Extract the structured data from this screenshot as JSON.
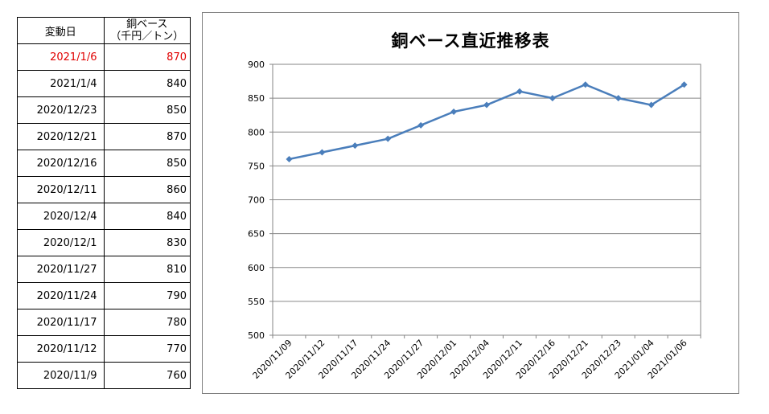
{
  "table": {
    "header_date": "変動日",
    "header_price_line1": "銅ベース",
    "header_price_line2": "（千円／トン）",
    "rows": [
      {
        "date": "2021/1/6",
        "value": "870",
        "highlight": true
      },
      {
        "date": "2021/1/4",
        "value": "840",
        "highlight": false
      },
      {
        "date": "2020/12/23",
        "value": "850",
        "highlight": false
      },
      {
        "date": "2020/12/21",
        "value": "870",
        "highlight": false
      },
      {
        "date": "2020/12/16",
        "value": "850",
        "highlight": false
      },
      {
        "date": "2020/12/11",
        "value": "860",
        "highlight": false
      },
      {
        "date": "2020/12/4",
        "value": "840",
        "highlight": false
      },
      {
        "date": "2020/12/1",
        "value": "830",
        "highlight": false
      },
      {
        "date": "2020/11/27",
        "value": "810",
        "highlight": false
      },
      {
        "date": "2020/11/24",
        "value": "790",
        "highlight": false
      },
      {
        "date": "2020/11/17",
        "value": "780",
        "highlight": false
      },
      {
        "date": "2020/11/12",
        "value": "770",
        "highlight": false
      },
      {
        "date": "2020/11/9",
        "value": "760",
        "highlight": false
      }
    ],
    "highlight_color": "#e00000"
  },
  "chart_data": {
    "type": "line",
    "title": "銅ベース直近推移表",
    "xlabel": "",
    "ylabel": "",
    "categories": [
      "2020/11/09",
      "2020/11/12",
      "2020/11/17",
      "2020/11/24",
      "2020/11/27",
      "2020/12/01",
      "2020/12/04",
      "2020/12/11",
      "2020/12/16",
      "2020/12/21",
      "2020/12/23",
      "2021/01/04",
      "2021/01/06"
    ],
    "series": [
      {
        "values": [
          760,
          770,
          780,
          790,
          810,
          830,
          840,
          860,
          850,
          870,
          850,
          840,
          870
        ],
        "color": "#4a7ebb"
      }
    ],
    "ylim": [
      500,
      900
    ],
    "yticks": [
      500,
      550,
      600,
      650,
      700,
      750,
      800,
      850,
      900
    ],
    "grid": true,
    "marker": "diamond",
    "legend": "none"
  }
}
